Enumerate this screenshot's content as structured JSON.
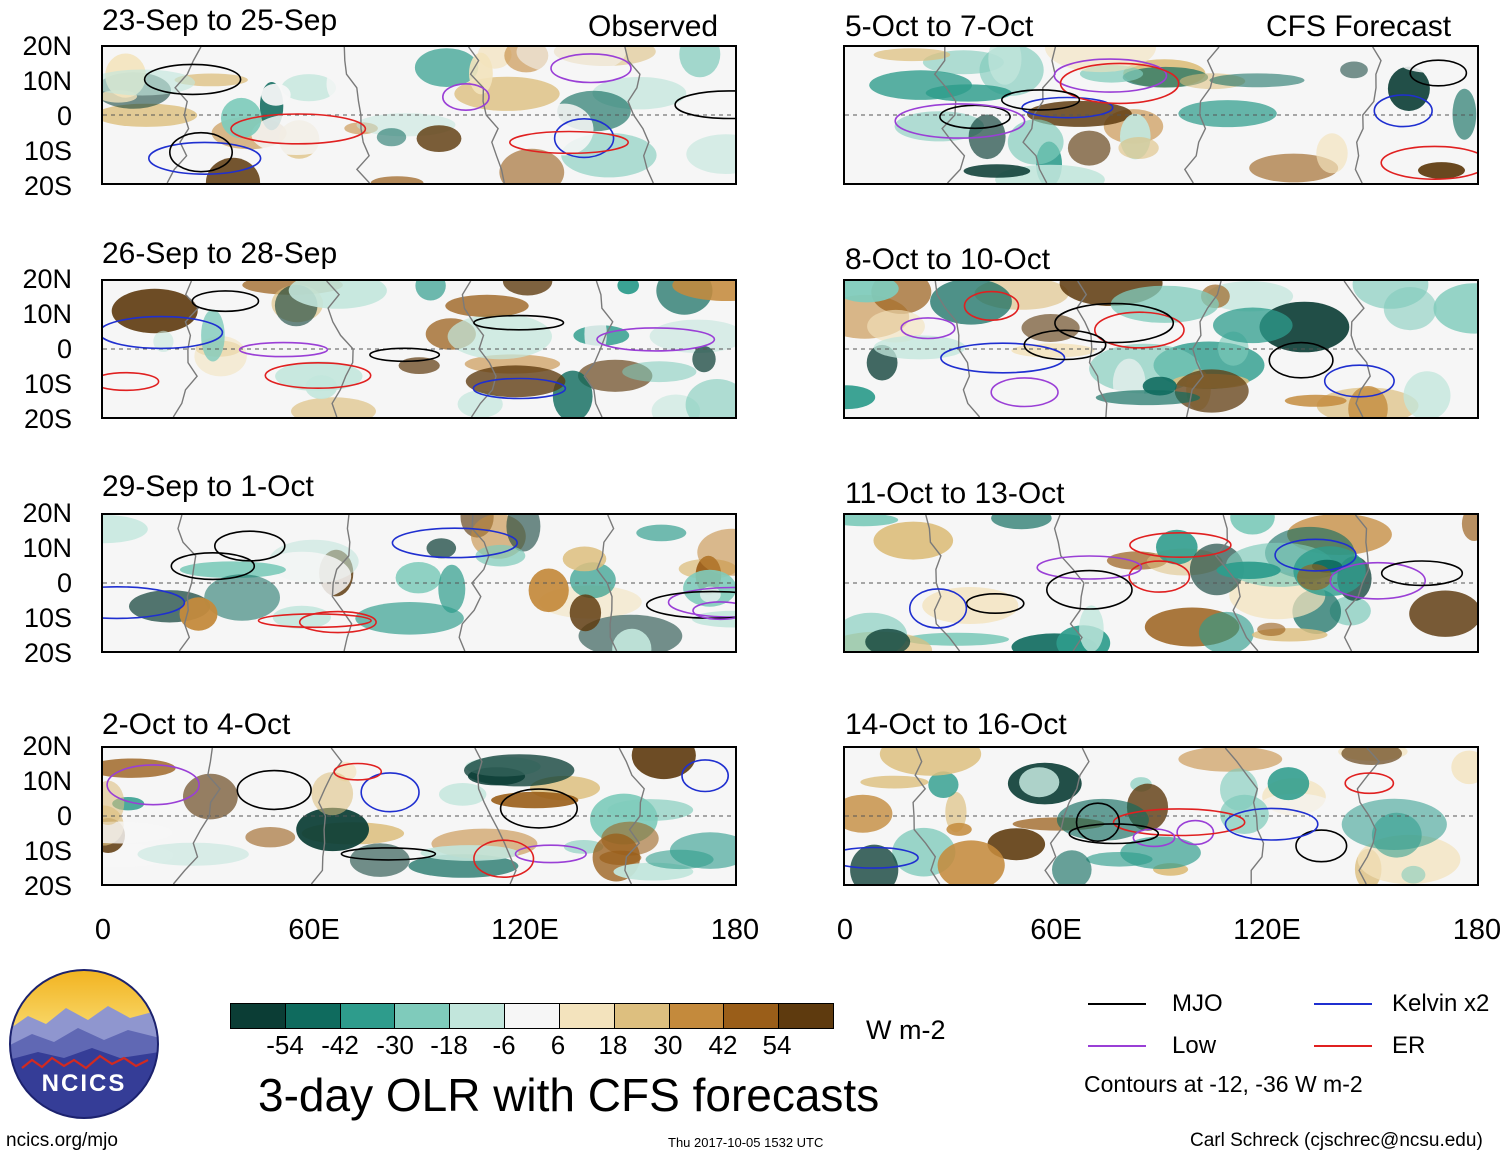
{
  "headers": {
    "left": "Observed",
    "right": "CFS Forecast"
  },
  "panels_left": [
    {
      "title": "23-Sep to 25-Sep"
    },
    {
      "title": "26-Sep to 28-Sep"
    },
    {
      "title": "29-Sep to 1-Oct"
    },
    {
      "title": "2-Oct to 4-Oct"
    }
  ],
  "panels_right": [
    {
      "title": "5-Oct to 7-Oct"
    },
    {
      "title": "8-Oct to 10-Oct"
    },
    {
      "title": "11-Oct to 13-Oct"
    },
    {
      "title": "14-Oct to 16-Oct"
    }
  ],
  "lat_labels": [
    "20N",
    "10N",
    "0",
    "10S",
    "20S"
  ],
  "lon_labels": [
    "0",
    "60E",
    "120E",
    "180"
  ],
  "colorbar": {
    "colors": [
      "#0b3d35",
      "#0f6b5e",
      "#2e9c8c",
      "#7fcbbb",
      "#c2e6dc",
      "#f6f6f6",
      "#f3e3bd",
      "#ddbf7f",
      "#c48a3c",
      "#9a5e19",
      "#5e3a0e"
    ],
    "ticks": [
      "-54",
      "-42",
      "-30",
      "-18",
      "-6",
      "6",
      "18",
      "30",
      "42",
      "54"
    ],
    "units": "W m-2"
  },
  "title": "3-day OLR with CFS forecasts",
  "legend": {
    "items": [
      {
        "label": "MJO",
        "color": "#000000"
      },
      {
        "label": "Kelvin x2",
        "color": "#1f2fd0"
      },
      {
        "label": "Low",
        "color": "#9a3fd6"
      },
      {
        "label": "ER",
        "color": "#e02020"
      }
    ],
    "note": "Contours at -12, -36 W m-2"
  },
  "footer": {
    "site": "ncics.org/mjo",
    "timestamp": "Thu 2017-10-05 1532 UTC",
    "author": "Carl Schreck (cjschrec@ncsu.edu)"
  },
  "logo": {
    "text": "NCICS"
  }
}
